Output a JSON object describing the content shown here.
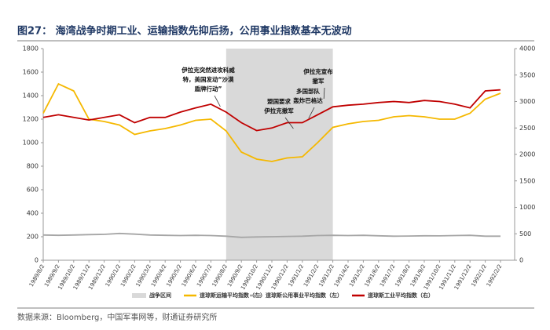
{
  "chart_data": {
    "type": "line",
    "title": "图27：  海湾战争时期工业、运输指数先抑后扬，公用事业指数基本无波动",
    "source": "数据来源：Bloomberg，中国军事网等，财通证券研究所",
    "categories": [
      "1989/8/2",
      "1989/9/2",
      "1989/10/2",
      "1989/11/2",
      "1989/12/2",
      "1990/1/2",
      "1990/2/2",
      "1990/3/2",
      "1990/4/2",
      "1990/5/2",
      "1990/6/2",
      "1990/7/2",
      "1990/8/2",
      "1990/9/2",
      "1990/10/2",
      "1990/11/2",
      "1990/12/2",
      "1991/1/2",
      "1991/2/2",
      "1991/3/2",
      "1991/4/2",
      "1991/5/2",
      "1991/6/2",
      "1991/7/2",
      "1991/8/2",
      "1991/9/2",
      "1991/10/2",
      "1991/11/2",
      "1991/12/2",
      "1992/1/2",
      "1992/2/2"
    ],
    "war_period": {
      "name": "战争区间",
      "start": "1990/8/2",
      "end": "1991/3/2",
      "color": "#d9d9d9"
    },
    "series": [
      {
        "name": "道琼斯运输平均指数（左）",
        "color": "#f5b800",
        "axis": "y",
        "values": [
          1250,
          1500,
          1440,
          1200,
          1180,
          1150,
          1070,
          1100,
          1120,
          1150,
          1190,
          1200,
          1100,
          920,
          860,
          840,
          870,
          880,
          1000,
          1130,
          1160,
          1180,
          1190,
          1220,
          1230,
          1220,
          1200,
          1200,
          1250,
          1370,
          1420
        ]
      },
      {
        "name": "道琼斯公用事业平均指数（左）",
        "color": "#a6a6a6",
        "axis": "y",
        "values": [
          215,
          212,
          215,
          218,
          220,
          228,
          222,
          215,
          212,
          210,
          212,
          210,
          205,
          195,
          198,
          200,
          203,
          205,
          210,
          212,
          210,
          212,
          208,
          205,
          206,
          208,
          207,
          210,
          212,
          205,
          205
        ]
      },
      {
        "name": "道琼斯工业平均指数（右）",
        "color": "#c00000",
        "axis": "y2",
        "values": [
          2700,
          2750,
          2700,
          2650,
          2700,
          2750,
          2600,
          2700,
          2700,
          2800,
          2880,
          2950,
          2800,
          2600,
          2450,
          2500,
          2600,
          2600,
          2750,
          2900,
          2930,
          2950,
          2980,
          3000,
          2980,
          3020,
          3000,
          2950,
          2880,
          3200,
          3220
        ]
      }
    ],
    "ylim": [
      0,
      1800
    ],
    "yticks": [
      0,
      200,
      400,
      600,
      800,
      1000,
      1200,
      1400,
      1600,
      1800
    ],
    "y2lim": [
      0,
      4000
    ],
    "y2ticks": [
      0,
      500,
      1000,
      1500,
      2000,
      2500,
      3000,
      3500,
      4000
    ],
    "annotations": [
      {
        "at": "1990/7/2",
        "lines": [
          "伊拉克突然进攻科威",
          "特，美国发动“沙漠",
          "盾牌行动”"
        ]
      },
      {
        "at": "1990/12/2",
        "lines": [
          "盟国要求",
          "伊拉克撤军"
        ]
      },
      {
        "at": "1991/1/2",
        "lines": [
          "多国部队",
          "轰炸巴格达"
        ]
      },
      {
        "at": "1991/2/2",
        "lines": [
          "伊拉克宣布",
          "撤军"
        ]
      }
    ]
  }
}
